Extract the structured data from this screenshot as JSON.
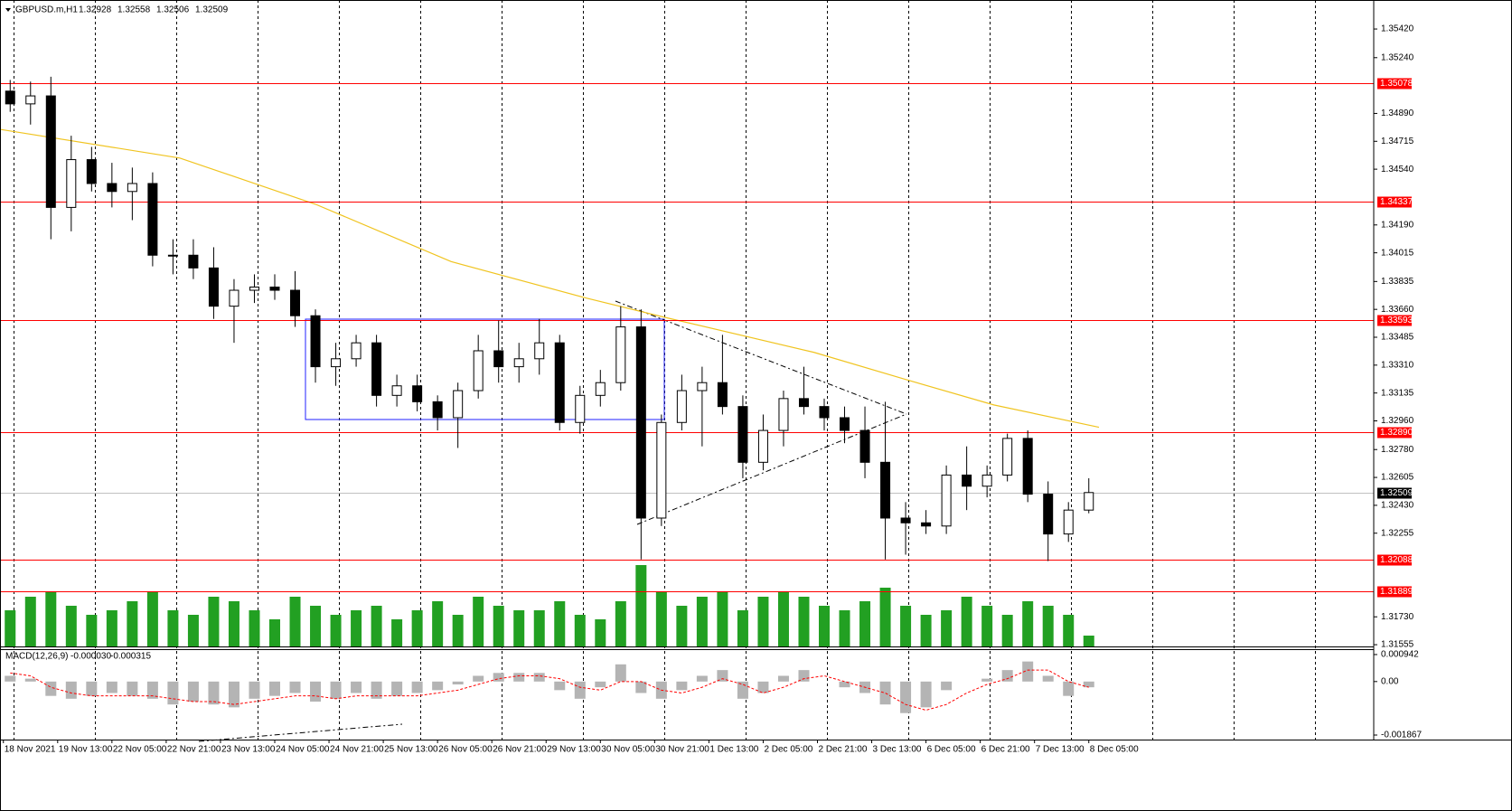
{
  "chart_data": {
    "type": "candlestick",
    "title": "GBPUSD.m,H1",
    "header_values": [
      "1.32928",
      "1.32558",
      "1.32506",
      "1.32509"
    ],
    "x": [
      3,
      9,
      15,
      21,
      27,
      33,
      39,
      45,
      51,
      57,
      63,
      69,
      75,
      81,
      87,
      93,
      99,
      105,
      111,
      117,
      123,
      129,
      135,
      141,
      147,
      153,
      159,
      165,
      171,
      177,
      183,
      189,
      195,
      201,
      207,
      213,
      219,
      225,
      231,
      237,
      243,
      249,
      255,
      261,
      267,
      273,
      279,
      285,
      291,
      297,
      303,
      309,
      315,
      321
    ],
    "open": [
      1.3503,
      1.3495,
      1.35,
      1.343,
      1.346,
      1.3445,
      1.344,
      1.3445,
      1.34,
      1.34,
      1.3392,
      1.3368,
      1.3378,
      1.338,
      1.3378,
      1.3362,
      1.333,
      1.3335,
      1.3345,
      1.3312,
      1.3318,
      1.3308,
      1.3298,
      1.3315,
      1.334,
      1.333,
      1.3335,
      1.3345,
      1.3295,
      1.3312,
      1.332,
      1.3355,
      1.3235,
      1.3295,
      1.3315,
      1.332,
      1.3305,
      1.327,
      1.329,
      1.331,
      1.3305,
      1.3298,
      1.329,
      1.327,
      1.3235,
      1.3232,
      1.323,
      1.3262,
      1.3255,
      1.3262,
      1.3285,
      1.325,
      1.3225,
      1.324
    ],
    "high": [
      1.351,
      1.3509,
      1.3512,
      1.3475,
      1.3468,
      1.3458,
      1.3455,
      1.3452,
      1.341,
      1.341,
      1.3405,
      1.3385,
      1.3388,
      1.3388,
      1.339,
      1.3366,
      1.3345,
      1.335,
      1.335,
      1.3325,
      1.3325,
      1.3312,
      1.332,
      1.335,
      1.3359,
      1.3345,
      1.336,
      1.335,
      1.3318,
      1.3328,
      1.3368,
      1.3366,
      1.33,
      1.3325,
      1.333,
      1.335,
      1.3312,
      1.33,
      1.3315,
      1.333,
      1.331,
      1.3305,
      1.3305,
      1.3308,
      1.3245,
      1.324,
      1.3268,
      1.328,
      1.3268,
      1.3288,
      1.329,
      1.3258,
      1.3245,
      1.326
    ],
    "low": [
      1.349,
      1.3482,
      1.341,
      1.3415,
      1.344,
      1.343,
      1.3422,
      1.3393,
      1.3388,
      1.3385,
      1.336,
      1.3345,
      1.337,
      1.3372,
      1.3355,
      1.332,
      1.3318,
      1.333,
      1.3305,
      1.3305,
      1.3302,
      1.329,
      1.3279,
      1.331,
      1.332,
      1.332,
      1.3325,
      1.329,
      1.3288,
      1.3305,
      1.3315,
      1.3209,
      1.323,
      1.329,
      1.328,
      1.33,
      1.326,
      1.3265,
      1.328,
      1.33,
      1.329,
      1.3282,
      1.326,
      1.3209,
      1.3212,
      1.3225,
      1.3225,
      1.324,
      1.3248,
      1.3258,
      1.3245,
      1.3208,
      1.322,
      1.3238
    ],
    "close": [
      1.3495,
      1.35,
      1.343,
      1.346,
      1.3445,
      1.344,
      1.3445,
      1.34,
      1.34,
      1.3392,
      1.3368,
      1.3378,
      1.338,
      1.3378,
      1.3362,
      1.333,
      1.3335,
      1.3345,
      1.3312,
      1.3318,
      1.3308,
      1.3298,
      1.3315,
      1.334,
      1.333,
      1.3335,
      1.3345,
      1.3295,
      1.3312,
      1.332,
      1.3355,
      1.3235,
      1.3295,
      1.3315,
      1.332,
      1.3305,
      1.327,
      1.329,
      1.331,
      1.3305,
      1.3298,
      1.329,
      1.327,
      1.3235,
      1.3232,
      1.323,
      1.3262,
      1.3255,
      1.3262,
      1.3285,
      1.325,
      1.3225,
      1.324,
      1.3251
    ],
    "volume": [
      1600,
      2200,
      2400,
      1800,
      1400,
      1600,
      2000,
      2400,
      1600,
      1400,
      2200,
      2000,
      1600,
      1200,
      2200,
      1800,
      1400,
      1600,
      1800,
      1200,
      1600,
      2000,
      1400,
      2200,
      1800,
      1600,
      1600,
      2000,
      1400,
      1200,
      2000,
      3600,
      2400,
      1800,
      2200,
      2400,
      1600,
      2200,
      2400,
      2200,
      1800,
      1600,
      2000,
      2600,
      1800,
      1400,
      1600,
      2200,
      1800,
      1400,
      2000,
      1800,
      1400,
      480
    ],
    "up_color": "#ffffff",
    "down_color": "#000000",
    "volume_color": "#22a022",
    "ma_x": [
      0,
      53,
      93,
      133,
      173,
      196,
      240,
      267,
      293,
      324
    ],
    "ma_values": [
      1.3479,
      1.3461,
      1.3432,
      1.3396,
      1.3373,
      1.3361,
      1.3339,
      1.3322,
      1.3306,
      1.3292
    ],
    "ma_color": "#f0c420",
    "xlim": [
      0,
      405
    ],
    "xticks": [
      {
        "value": 1,
        "label": "18 Nov 2021"
      },
      {
        "value": 17,
        "label": "19 Nov 13:00"
      },
      {
        "value": 33,
        "label": "22 Nov 05:00"
      },
      {
        "value": 49,
        "label": "22 Nov 21:00"
      },
      {
        "value": 65,
        "label": "23 Nov 13:00"
      },
      {
        "value": 81,
        "label": "24 Nov 05:00"
      },
      {
        "value": 97,
        "label": "24 Nov 21:00"
      },
      {
        "value": 113,
        "label": "25 Nov 13:00"
      },
      {
        "value": 129,
        "label": "26 Nov 05:00"
      },
      {
        "value": 145,
        "label": "26 Nov 21:00"
      },
      {
        "value": 161,
        "label": "29 Nov 13:00"
      },
      {
        "value": 177,
        "label": "30 Nov 05:00"
      },
      {
        "value": 193,
        "label": "30 Nov 21:00"
      },
      {
        "value": 209,
        "label": "1 Dec 13:00"
      },
      {
        "value": 225,
        "label": "2 Dec 05:00"
      },
      {
        "value": 241,
        "label": "2 Dec 21:00"
      },
      {
        "value": 257,
        "label": "3 Dec 13:00"
      },
      {
        "value": 273,
        "label": "6 Dec 05:00"
      },
      {
        "value": 289,
        "label": "6 Dec 21:00"
      },
      {
        "value": 305,
        "label": "7 Dec 13:00"
      },
      {
        "value": 321,
        "label": "8 Dec 05:00"
      }
    ],
    "ylim": [
      1.31544,
      1.35602
    ],
    "yticks": [
      {
        "value": 1.3542,
        "label": "1.35420"
      },
      {
        "value": 1.3524,
        "label": "1.35240"
      },
      {
        "value": 1.3489,
        "label": "1.34890"
      },
      {
        "value": 1.34715,
        "label": "1.34715"
      },
      {
        "value": 1.3454,
        "label": "1.34540"
      },
      {
        "value": 1.3419,
        "label": "1.34190"
      },
      {
        "value": 1.34015,
        "label": "1.34015"
      },
      {
        "value": 1.33835,
        "label": "1.33835"
      },
      {
        "value": 1.3366,
        "label": "1.33660"
      },
      {
        "value": 1.33485,
        "label": "1.33485"
      },
      {
        "value": 1.3331,
        "label": "1.33310"
      },
      {
        "value": 1.33135,
        "label": "1.33135"
      },
      {
        "value": 1.3296,
        "label": "1.32960"
      },
      {
        "value": 1.3278,
        "label": "1.32780"
      },
      {
        "value": 1.32605,
        "label": "1.32605"
      },
      {
        "value": 1.3243,
        "label": "1.32430"
      },
      {
        "value": 1.32255,
        "label": "1.32255"
      },
      {
        "value": 1.3173,
        "label": "1.31730"
      },
      {
        "value": 1.31555,
        "label": "1.31555"
      }
    ],
    "levels": [
      1.35078,
      1.34337,
      1.33593,
      {
        "value": 1.3289,
        "label": "1.32890"
      },
      1.32088,
      1.31889
    ],
    "level_color": "#ff0000",
    "current": 1.32509,
    "macd": {
      "title": "MACD(12,26,9)",
      "title_values": [
        "-0.000030",
        "-0.000315"
      ],
      "histogram": [
        0.0002,
        0.0001,
        -0.0005,
        -0.0006,
        -0.0005,
        -0.0004,
        -0.0005,
        -0.0006,
        -0.0008,
        -0.0007,
        -0.0008,
        -0.0009,
        -0.0006,
        -0.0005,
        -0.0004,
        -0.0007,
        -0.0006,
        -0.0004,
        -0.0006,
        -0.0005,
        -0.0004,
        -0.0003,
        -0.0001,
        0.0002,
        0.0003,
        0.0003,
        0.0003,
        -0.0003,
        -0.0006,
        -0.0002,
        0.0006,
        -0.0004,
        -0.0006,
        -0.0003,
        0.0002,
        0.0004,
        -0.0006,
        -0.0004,
        0.0002,
        0.0004,
        0,
        -0.0002,
        -0.0004,
        -0.0008,
        -0.0011,
        -0.0009,
        -0.0003,
        0,
        0.0001,
        0.0004,
        0.0007,
        0.0002,
        -0.0005,
        -0.0002
      ],
      "signal": [
        0.0003,
        0.0002,
        -0.0002,
        -0.0004,
        -0.0005,
        -0.0005,
        -0.0005,
        -0.0005,
        -0.0006,
        -0.0007,
        -0.0007,
        -0.0008,
        -0.0007,
        -0.0006,
        -0.0005,
        -0.0005,
        -0.0006,
        -0.0005,
        -0.0005,
        -0.0005,
        -0.0005,
        -0.0004,
        -0.0003,
        -0.0001,
        0.0001,
        0.0002,
        0.0002,
        0.0001,
        -0.0002,
        -0.0003,
        0,
        0,
        -0.0003,
        -0.0004,
        -0.0002,
        0.0001,
        -0.0001,
        -0.0004,
        -0.0002,
        0.0001,
        0.0002,
        0,
        -0.0002,
        -0.0004,
        -0.0008,
        -0.001,
        -0.0008,
        -0.0004,
        -0.0001,
        0.0001,
        0.0004,
        0.0004,
        0,
        -0.0002
      ],
      "hist_color": "#b4b4b4",
      "signal_color": "#ff0000",
      "ylim": [
        -0.00193,
        0.00113
      ],
      "yticks": [
        0.000942,
        {
          "value": 0,
          "label": "0.00"
        },
        -0.001867
      ]
    }
  }
}
